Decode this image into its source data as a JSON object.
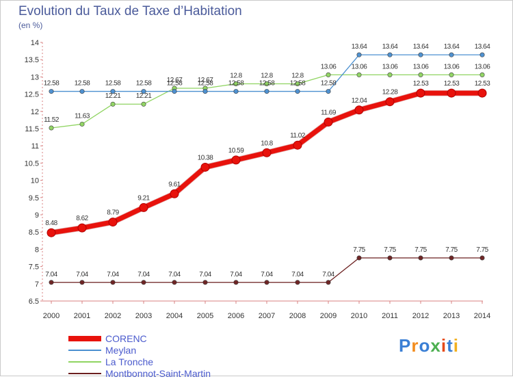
{
  "header": {
    "title": "Evolution du Taux de Taxe d’Habitation",
    "unit": "(en %)"
  },
  "logo": {
    "text": "Proxiti",
    "colors": [
      "#3a7fd5",
      "#f28c1e",
      "#3a7fd5",
      "#4caf50",
      "#e64a19",
      "#3a7fd5",
      "#f2b01e"
    ]
  },
  "chart_data": {
    "type": "line",
    "title": "Evolution du Taux de Taxe d’Habitation",
    "ylabel": "(en %)",
    "xlabel": "",
    "ylim": [
      6.5,
      14
    ],
    "yticks": [
      "6.5",
      "7",
      "7.5",
      "8",
      "8.5",
      "9",
      "9.5",
      "10",
      "10.5",
      "11",
      "11.5",
      "12",
      "12.5",
      "13",
      "13.5",
      "14"
    ],
    "x": [
      "2000",
      "2001",
      "2002",
      "2003",
      "2004",
      "2005",
      "2006",
      "2007",
      "2008",
      "2009",
      "2010",
      "2011",
      "2012",
      "2013",
      "2014"
    ],
    "legend_position": "bottom-left",
    "grid": false,
    "series": [
      {
        "name": "CORENC",
        "color": "#e8120c",
        "values": [
          8.48,
          8.62,
          8.79,
          9.21,
          9.61,
          10.38,
          10.59,
          10.8,
          11.02,
          11.69,
          12.04,
          12.28,
          12.53,
          12.53,
          12.53
        ]
      },
      {
        "name": "Meylan",
        "color": "#4a8fd0",
        "values": [
          12.58,
          12.58,
          12.58,
          12.58,
          12.58,
          12.58,
          12.58,
          12.58,
          12.58,
          12.58,
          13.64,
          13.64,
          13.64,
          13.64,
          13.64
        ]
      },
      {
        "name": "La Tronche",
        "color": "#8fd460",
        "values": [
          11.52,
          11.63,
          12.21,
          12.21,
          12.67,
          12.67,
          12.8,
          12.8,
          12.8,
          13.06,
          13.06,
          13.06,
          13.06,
          13.06,
          13.06
        ]
      },
      {
        "name": "Montbonnot-Saint-Martin",
        "color": "#6b1f1f",
        "values": [
          7.04,
          7.04,
          7.04,
          7.04,
          7.04,
          7.04,
          7.04,
          7.04,
          7.04,
          7.04,
          7.75,
          7.75,
          7.75,
          7.75,
          7.75
        ]
      }
    ]
  }
}
